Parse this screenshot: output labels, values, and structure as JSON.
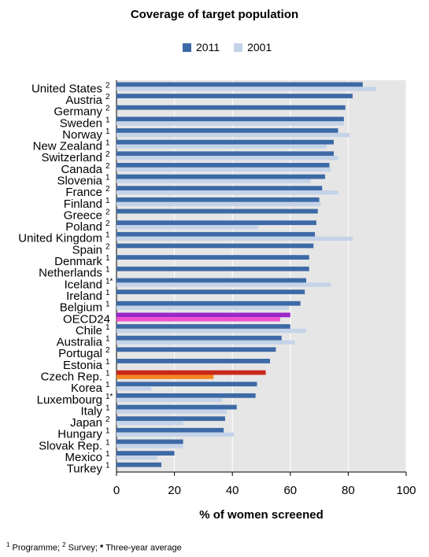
{
  "chart_data": {
    "type": "bar",
    "orientation": "horizontal",
    "title": "Coverage of target population",
    "xlabel": "% of women screened",
    "ylabel": "",
    "xlim": [
      0,
      100
    ],
    "xticks": [
      "0",
      "20",
      "40",
      "60",
      "80",
      "100"
    ],
    "grid": true,
    "legend_position": "top",
    "categories": [
      "United States",
      "Austria",
      "Germany",
      "Sweden",
      "Norway",
      "New Zealand",
      "Switzerland",
      "Canada",
      "Slovenia",
      "France",
      "Finland",
      "Greece",
      "Poland",
      "United Kingdom",
      "Spain",
      "Denmark",
      "Netherlands",
      "Iceland",
      "Ireland",
      "Belgium",
      "OECD24",
      "Chile",
      "Australia",
      "Portugal",
      "Estonia",
      "Czech Rep.",
      "Korea",
      "Luxembourg",
      "Italy",
      "Japan",
      "Hungary",
      "Slovak Rep.",
      "Mexico",
      "Turkey"
    ],
    "category_notes": [
      "2",
      "2",
      "2",
      "1",
      "1",
      "1",
      "2",
      "2",
      "1",
      "2",
      "1",
      "2",
      "2",
      "1",
      "2",
      "1",
      "1",
      "1*",
      "1",
      "1",
      "",
      "1",
      "1",
      "2",
      "1",
      "1",
      "1",
      "1*",
      "1",
      "2",
      "1",
      "1",
      "1",
      "1"
    ],
    "series": [
      {
        "name": "2011",
        "color": "#3d6aa6",
        "values": [
          85,
          81.5,
          79,
          78.5,
          76.5,
          75,
          75,
          73.5,
          72,
          71,
          70,
          69.5,
          69,
          68.5,
          68,
          66.5,
          66.5,
          65.5,
          65,
          63.5,
          60,
          60,
          57,
          55,
          53,
          51.5,
          48.5,
          48,
          41.5,
          37.5,
          37,
          23,
          20,
          15.5
        ]
      },
      {
        "name": "2001",
        "color": "#c4d3e8",
        "values": [
          89.5,
          null,
          null,
          78.5,
          80.5,
          72.5,
          76.5,
          74,
          67,
          76.5,
          70.5,
          null,
          49,
          81.5,
          null,
          null,
          null,
          74,
          null,
          59.5,
          56.5,
          65.5,
          61.5,
          null,
          null,
          33.5,
          12,
          36.5,
          38,
          23,
          40.5,
          23,
          14,
          null
        ]
      }
    ],
    "highlight_colors": {
      "OECD24": {
        "2011": "#9b27c9",
        "2001": "#f14fcf"
      },
      "Czech Rep.": {
        "2011": "#c8281a",
        "2001": "#f5861f"
      }
    },
    "plot_background": "#e6e6e6"
  },
  "footnote": {
    "note1_mark": "1",
    "note1_text": " Programme; ",
    "note2_mark": "2",
    "note2_text": " Survey; ",
    "note3_mark": "*",
    "note3_text": " Three-year average"
  }
}
